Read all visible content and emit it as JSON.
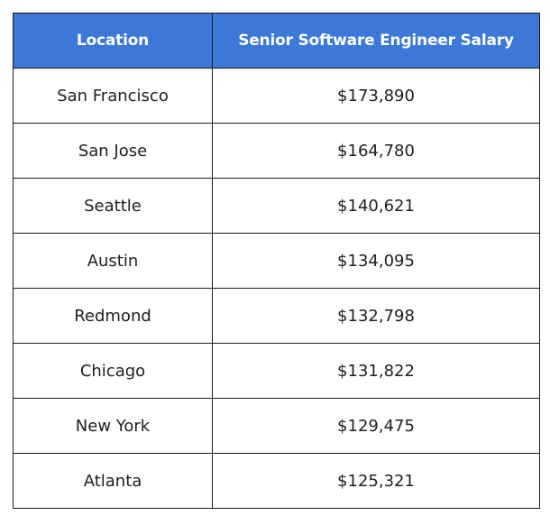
{
  "table": {
    "headers": [
      "Location",
      "Senior Software Engineer Salary"
    ],
    "rows": [
      {
        "location": "San Francisco",
        "salary": "$173,890"
      },
      {
        "location": "San Jose",
        "salary": "$164,780"
      },
      {
        "location": "Seattle",
        "salary": "$140,621"
      },
      {
        "location": "Austin",
        "salary": "$134,095"
      },
      {
        "location": "Redmond",
        "salary": "$132,798"
      },
      {
        "location": "Chicago",
        "salary": "$131,822"
      },
      {
        "location": "New York",
        "salary": "$129,475"
      },
      {
        "location": "Atlanta",
        "salary": "$125,321"
      }
    ]
  },
  "colors": {
    "header_background": "#3b78d8",
    "header_text": "#ffffff",
    "border": "#1b1b1b",
    "body_text": "#202020"
  }
}
